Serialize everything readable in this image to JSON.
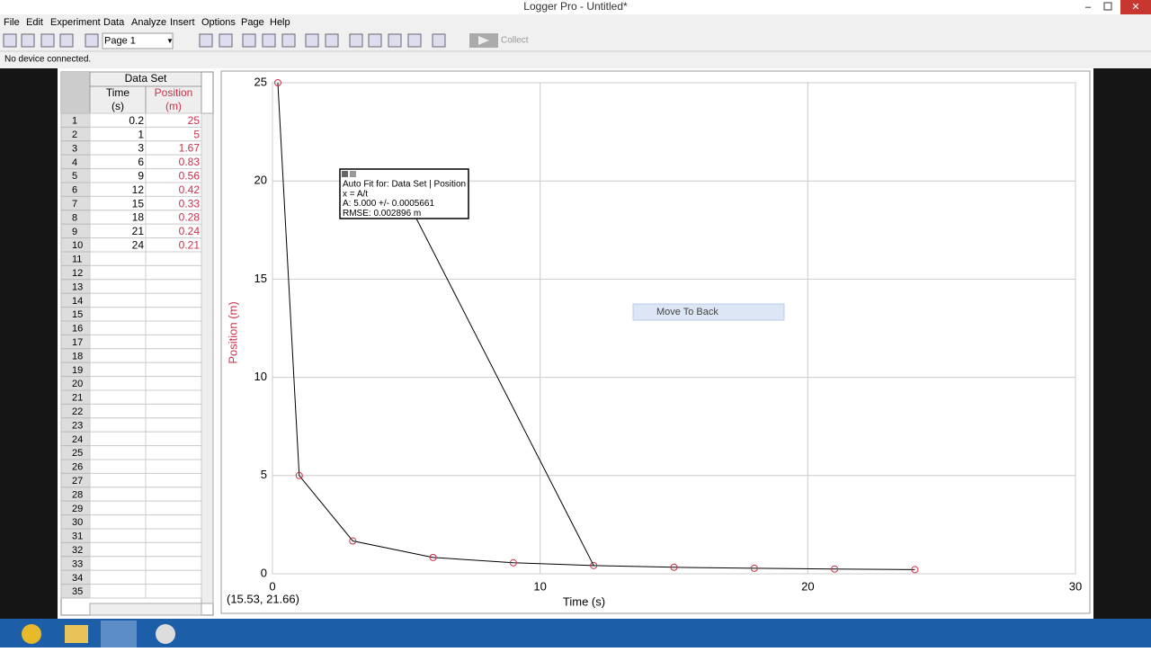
{
  "window_title": "Logger Pro - Untitled*",
  "menu": [
    "File",
    "Edit",
    "Experiment",
    "Data",
    "Analyze",
    "Insert",
    "Options",
    "Page",
    "Help"
  ],
  "toolbar": {
    "page_select": "Page 1",
    "collect": "Collect"
  },
  "status": "No device connected.",
  "table": {
    "title": "Data Set",
    "columns": [
      {
        "name": "Time",
        "unit": "(s)"
      },
      {
        "name": "Position",
        "unit": "(m)"
      }
    ],
    "row_numbers": [
      1,
      2,
      3,
      4,
      5,
      6,
      7,
      8,
      9,
      10,
      11,
      12,
      13,
      14,
      15,
      16,
      17,
      18,
      19,
      20,
      21,
      22,
      23,
      24,
      25,
      26,
      27,
      28,
      29,
      30,
      31,
      32,
      33,
      34,
      35
    ]
  },
  "chart_data": {
    "type": "scatter",
    "x": [
      0.2,
      1,
      3,
      6,
      9,
      12,
      15,
      18,
      21,
      24
    ],
    "series": [
      {
        "color": "#c8324a",
        "values": [
          25,
          5,
          1.67,
          0.83,
          0.56,
          0.42,
          0.33,
          0.28,
          0.24,
          0.21
        ]
      }
    ],
    "xlabel": "Time (s)",
    "ylabel": "Position (m)",
    "xlim": [
      0,
      30
    ],
    "ylim": [
      0,
      25
    ],
    "xticks": [
      0,
      10,
      20,
      30
    ],
    "yticks": [
      0,
      5,
      10,
      15,
      20,
      25
    ],
    "grid": true,
    "fit_line": true,
    "fit_annotation": [
      "Auto Fit for: Data Set | Position",
      "x = A/t",
      "A: 5.000 +/- 0.0005661",
      "RMSE: 0.002896 m"
    ],
    "cursor_readout": "(15.53, 21.66)"
  },
  "context_menu": "Move To Back"
}
